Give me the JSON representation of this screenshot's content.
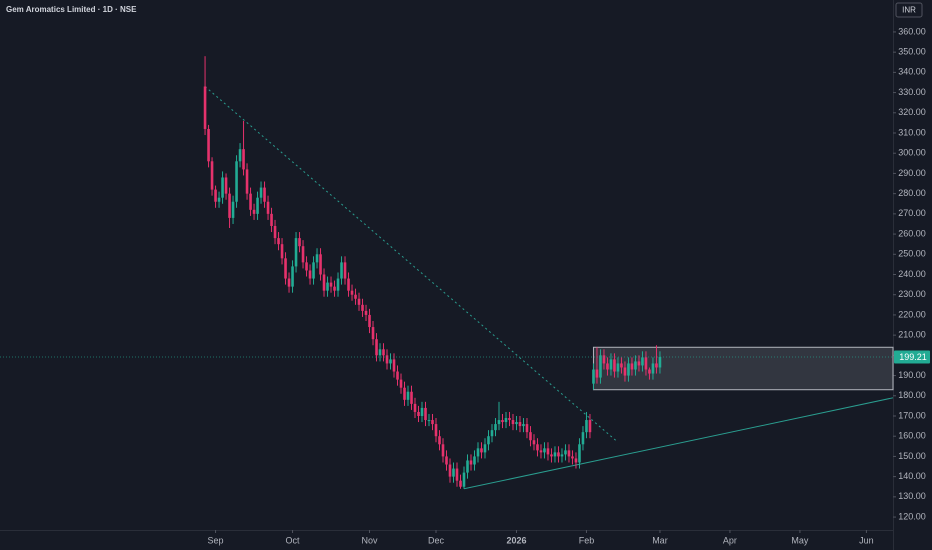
{
  "chart_data": {
    "type": "candlestick",
    "title": "Gem Aromatics Limited · 1D · NSE",
    "currency": "INR",
    "up_color": "#22ab94",
    "down_color": "#e5326c",
    "open": [
      333,
      312,
      296,
      282,
      276,
      278,
      288,
      280,
      268,
      276,
      296,
      302,
      292,
      280,
      272,
      270,
      278,
      283,
      276,
      270,
      264,
      258,
      255,
      248,
      238,
      234,
      244,
      258,
      254,
      246,
      242,
      238,
      246,
      250,
      240,
      232,
      236,
      234,
      232,
      238,
      246,
      238,
      232,
      230,
      228,
      225,
      222,
      220,
      214,
      208,
      200,
      203,
      200,
      196,
      198,
      192,
      188,
      184,
      178,
      182,
      176,
      172,
      170,
      174,
      168,
      168,
      166,
      160,
      156,
      150,
      146,
      140,
      144,
      138,
      135,
      142,
      148,
      146,
      150,
      154,
      152,
      156,
      160,
      163,
      166,
      168,
      167,
      169,
      168,
      166,
      167,
      165,
      166,
      162,
      158,
      156,
      153,
      152,
      154,
      151,
      150,
      152,
      150,
      151,
      153,
      150,
      149,
      147,
      156,
      162,
      168,
      186,
      193,
      189,
      200,
      196,
      193,
      198,
      192,
      196,
      194,
      190,
      196,
      193,
      197,
      195,
      199,
      193,
      191,
      196,
      194
    ],
    "high": [
      348,
      314,
      298,
      284,
      281,
      291,
      290,
      283,
      279,
      299,
      305,
      316,
      295,
      283,
      275,
      281,
      286,
      286,
      279,
      273,
      267,
      261,
      258,
      251,
      241,
      247,
      261,
      261,
      257,
      249,
      245,
      249,
      253,
      253,
      243,
      239,
      239,
      237,
      241,
      249,
      249,
      241,
      235,
      233,
      231,
      228,
      225,
      223,
      217,
      211,
      206,
      206,
      203,
      201,
      201,
      195,
      191,
      187,
      185,
      185,
      179,
      175,
      177,
      177,
      171,
      171,
      169,
      163,
      159,
      153,
      149,
      147,
      147,
      141,
      145,
      151,
      151,
      153,
      157,
      157,
      159,
      163,
      166,
      169,
      177,
      171,
      172,
      172,
      171,
      170,
      170,
      169,
      169,
      165,
      161,
      159,
      156,
      157,
      157,
      154,
      155,
      155,
      154,
      156,
      156,
      153,
      152,
      159,
      165,
      172,
      171,
      196,
      204,
      203,
      203,
      199,
      201,
      201,
      199,
      199,
      197,
      199,
      199,
      200,
      200,
      202,
      202,
      194,
      199,
      205,
      202
    ],
    "low": [
      309,
      293,
      279,
      273,
      273,
      275,
      277,
      263,
      265,
      273,
      293,
      289,
      277,
      269,
      267,
      267,
      275,
      273,
      267,
      261,
      255,
      252,
      245,
      235,
      231,
      231,
      241,
      251,
      243,
      239,
      235,
      235,
      243,
      237,
      229,
      229,
      231,
      229,
      229,
      235,
      235,
      229,
      227,
      225,
      222,
      219,
      217,
      211,
      205,
      197,
      197,
      197,
      193,
      193,
      189,
      185,
      181,
      175,
      175,
      173,
      169,
      167,
      167,
      165,
      165,
      163,
      157,
      153,
      147,
      143,
      137,
      137,
      135,
      134,
      134,
      139,
      143,
      143,
      147,
      149,
      149,
      153,
      157,
      160,
      163,
      164,
      164,
      165,
      163,
      163,
      162,
      162,
      159,
      155,
      153,
      150,
      149,
      149,
      148,
      147,
      147,
      147,
      147,
      148,
      147,
      146,
      144,
      144,
      153,
      159,
      159,
      183,
      186,
      186,
      193,
      190,
      190,
      189,
      189,
      191,
      187,
      187,
      190,
      190,
      192,
      192,
      190,
      188,
      188,
      191,
      191
    ],
    "close": [
      312,
      296,
      282,
      276,
      278,
      288,
      280,
      268,
      276,
      296,
      302,
      292,
      280,
      272,
      270,
      278,
      283,
      276,
      270,
      264,
      258,
      255,
      248,
      238,
      234,
      244,
      258,
      254,
      246,
      242,
      238,
      246,
      250,
      240,
      232,
      236,
      234,
      232,
      238,
      246,
      238,
      232,
      230,
      228,
      225,
      222,
      220,
      214,
      208,
      200,
      203,
      200,
      196,
      198,
      192,
      188,
      184,
      178,
      182,
      176,
      172,
      170,
      174,
      168,
      168,
      166,
      160,
      156,
      150,
      146,
      140,
      144,
      138,
      135,
      142,
      148,
      146,
      150,
      154,
      152,
      156,
      160,
      163,
      166,
      168,
      167,
      169,
      168,
      166,
      167,
      165,
      166,
      162,
      158,
      156,
      153,
      152,
      154,
      151,
      150,
      152,
      150,
      151,
      153,
      150,
      149,
      147,
      156,
      162,
      168,
      162,
      193,
      189,
      200,
      196,
      193,
      198,
      192,
      196,
      194,
      190,
      196,
      193,
      197,
      195,
      199,
      193,
      191,
      196,
      194,
      199.21
    ],
    "xlim": [
      -58.6,
      196.6
    ],
    "xticks": [
      {
        "value": 3,
        "label": "Sep"
      },
      {
        "value": 25,
        "label": "Oct"
      },
      {
        "value": 47,
        "label": "Nov"
      },
      {
        "value": 66,
        "label": "Dec"
      },
      {
        "value": 89,
        "label": "2026"
      },
      {
        "value": 109,
        "label": "Feb"
      },
      {
        "value": 130,
        "label": "Mar"
      },
      {
        "value": 150,
        "label": "Apr"
      },
      {
        "value": 170,
        "label": "May"
      },
      {
        "value": 189,
        "label": "Jun"
      }
    ],
    "ylim": [
      113.6,
      375.8
    ],
    "yticks": [
      {
        "value": 120,
        "label": "120.00"
      },
      {
        "value": 130,
        "label": "130.00"
      },
      {
        "value": 140,
        "label": "140.00"
      },
      {
        "value": 150,
        "label": "150.00"
      },
      {
        "value": 160,
        "label": "160.00"
      },
      {
        "value": 170,
        "label": "170.00"
      },
      {
        "value": 180,
        "label": "180.00"
      },
      {
        "value": 190,
        "label": "190.00"
      },
      {
        "value": 200,
        "label": "200.00"
      },
      {
        "value": 210,
        "label": "210.00"
      },
      {
        "value": 220,
        "label": "220.00"
      },
      {
        "value": 230,
        "label": "230.00"
      },
      {
        "value": 240,
        "label": "240.00"
      },
      {
        "value": 250,
        "label": "250.00"
      },
      {
        "value": 260,
        "label": "260.00"
      },
      {
        "value": 270,
        "label": "270.00"
      },
      {
        "value": 280,
        "label": "280.00"
      },
      {
        "value": 290,
        "label": "290.00"
      },
      {
        "value": 300,
        "label": "300.00"
      },
      {
        "value": 310,
        "label": "310.00"
      },
      {
        "value": 320,
        "label": "320.00"
      },
      {
        "value": 330,
        "label": "330.00"
      },
      {
        "value": 340,
        "label": "340.00"
      },
      {
        "value": 350,
        "label": "350.00"
      },
      {
        "value": 360,
        "label": "360.00"
      }
    ],
    "drawings": [
      {
        "kind": "trendline",
        "style": "dotted",
        "color": "#2a9d8f",
        "x": [
          0,
          118
        ],
        "y": [
          333,
          157
        ]
      },
      {
        "kind": "trendline",
        "style": "solid",
        "color": "#2a9d8f",
        "x": [
          74,
          196.6
        ],
        "y": [
          134,
          179
        ]
      },
      {
        "kind": "rectangle",
        "color": "#b2b5be",
        "x": [
          111,
          196.6
        ],
        "y": [
          183,
          204
        ]
      }
    ]
  }
}
